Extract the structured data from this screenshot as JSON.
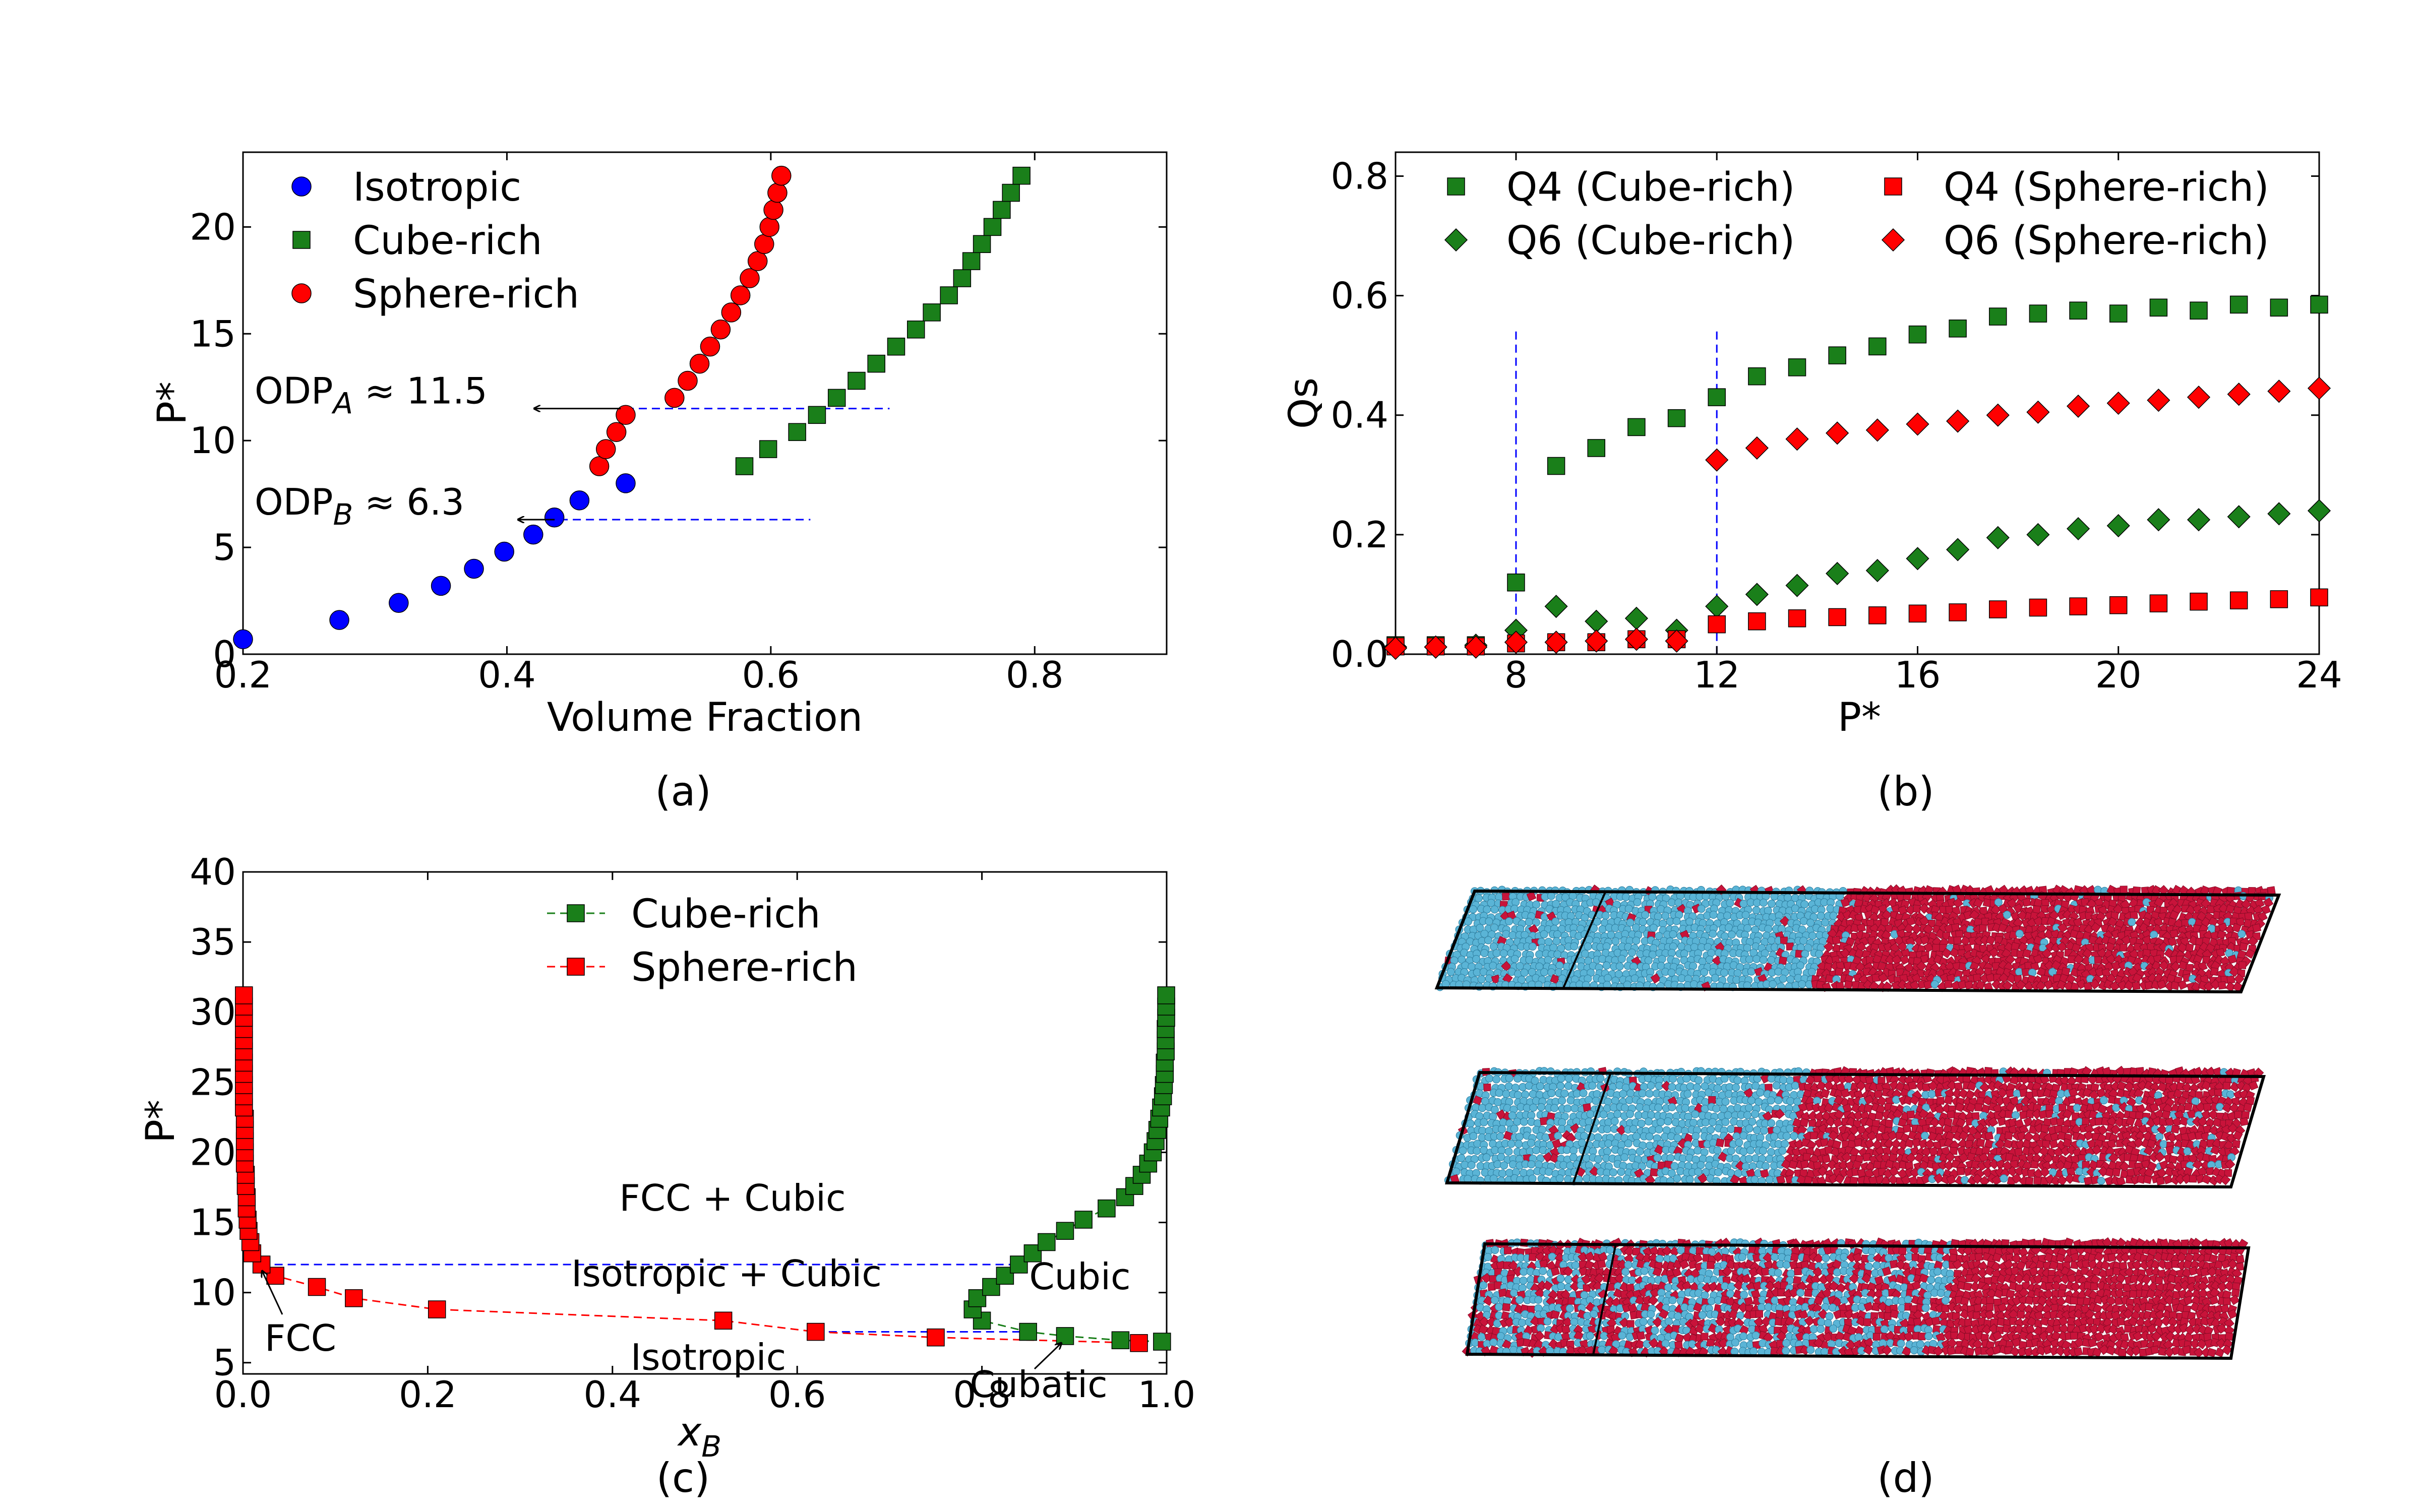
{
  "figure": {
    "captions": {
      "a": "(a)",
      "b": "(b)",
      "c": "(c)",
      "d": "(d)"
    }
  },
  "colors": {
    "isotropic": "#0000ff",
    "cube": "#1a7f1a",
    "sphere": "#ff0000",
    "guide": "#0000ff",
    "cube_render": "#c8133a",
    "sphere_render": "#5ab4d6"
  },
  "chart_data": [
    {
      "id": "a",
      "type": "scatter",
      "xlabel": "Volume Fraction",
      "ylabel": "P*",
      "xlim": [
        0.2,
        0.9
      ],
      "ylim": [
        0,
        23.5
      ],
      "xticks": [
        "0.2",
        "0.4",
        "0.6",
        "0.8"
      ],
      "yticks": [
        "0",
        "5",
        "10",
        "15",
        "20"
      ],
      "series": [
        {
          "name": "Isotropic",
          "marker": "circle",
          "color": "#0000ff",
          "points": [
            [
              0.2,
              0.7
            ],
            [
              0.273,
              1.6
            ],
            [
              0.318,
              2.4
            ],
            [
              0.35,
              3.2
            ],
            [
              0.375,
              4.0
            ],
            [
              0.398,
              4.8
            ],
            [
              0.42,
              5.6
            ],
            [
              0.436,
              6.4
            ],
            [
              0.455,
              7.2
            ],
            [
              0.49,
              8.0
            ]
          ]
        },
        {
          "name": "Cube-rich",
          "marker": "square",
          "color": "#1a7f1a",
          "points": [
            [
              0.58,
              8.8
            ],
            [
              0.598,
              9.6
            ],
            [
              0.62,
              10.4
            ],
            [
              0.635,
              11.2
            ],
            [
              0.65,
              12.0
            ],
            [
              0.665,
              12.8
            ],
            [
              0.68,
              13.6
            ],
            [
              0.695,
              14.4
            ],
            [
              0.71,
              15.2
            ],
            [
              0.722,
              16.0
            ],
            [
              0.735,
              16.8
            ],
            [
              0.745,
              17.6
            ],
            [
              0.752,
              18.4
            ],
            [
              0.76,
              19.2
            ],
            [
              0.768,
              20.0
            ],
            [
              0.775,
              20.8
            ],
            [
              0.782,
              21.6
            ],
            [
              0.79,
              22.4
            ]
          ]
        },
        {
          "name": "Sphere-rich",
          "marker": "circle",
          "color": "#ff0000",
          "points": [
            [
              0.47,
              8.8
            ],
            [
              0.475,
              9.6
            ],
            [
              0.483,
              10.4
            ],
            [
              0.49,
              11.2
            ],
            [
              0.527,
              12.0
            ],
            [
              0.537,
              12.8
            ],
            [
              0.546,
              13.6
            ],
            [
              0.554,
              14.4
            ],
            [
              0.562,
              15.2
            ],
            [
              0.57,
              16.0
            ],
            [
              0.577,
              16.8
            ],
            [
              0.584,
              17.6
            ],
            [
              0.59,
              18.4
            ],
            [
              0.595,
              19.2
            ],
            [
              0.599,
              20.0
            ],
            [
              0.602,
              20.8
            ],
            [
              0.605,
              21.6
            ],
            [
              0.608,
              22.4
            ]
          ]
        }
      ],
      "guides": [
        {
          "y": 11.5,
          "x_from": 0.49,
          "x_to": 0.69,
          "label": "ODP",
          "label_sub": "A",
          "label_rest": " ≈ 11.5"
        },
        {
          "y": 6.3,
          "x_from": 0.44,
          "x_to": 0.63,
          "label": "ODP",
          "label_sub": "B",
          "label_rest": " ≈  6.3"
        }
      ]
    },
    {
      "id": "b",
      "type": "scatter",
      "xlabel": "P*",
      "ylabel": "Qs",
      "xlim": [
        5.6,
        24
      ],
      "ylim": [
        0,
        0.84
      ],
      "xticks": [
        "8",
        "12",
        "16",
        "20",
        "24"
      ],
      "yticks": [
        "0.0",
        "0.2",
        "0.4",
        "0.6",
        "0.8"
      ],
      "vlines": [
        8,
        12
      ],
      "series": [
        {
          "name": "Q4 (Cube-rich)",
          "marker": "square",
          "color": "#1a7f1a",
          "points": [
            [
              5.6,
              0.015
            ],
            [
              6.4,
              0.015
            ],
            [
              7.2,
              0.015
            ],
            [
              8.0,
              0.12
            ],
            [
              8.8,
              0.315
            ],
            [
              9.6,
              0.345
            ],
            [
              10.4,
              0.38
            ],
            [
              11.2,
              0.395
            ],
            [
              12.0,
              0.43
            ],
            [
              12.8,
              0.465
            ],
            [
              13.6,
              0.48
            ],
            [
              14.4,
              0.5
            ],
            [
              15.2,
              0.515
            ],
            [
              16.0,
              0.535
            ],
            [
              16.8,
              0.545
            ],
            [
              17.6,
              0.565
            ],
            [
              18.4,
              0.57
            ],
            [
              19.2,
              0.575
            ],
            [
              20.0,
              0.57
            ],
            [
              20.8,
              0.58
            ],
            [
              21.6,
              0.575
            ],
            [
              22.4,
              0.585
            ],
            [
              23.2,
              0.58
            ],
            [
              24.0,
              0.585
            ]
          ]
        },
        {
          "name": "Q6 (Cube-rich)",
          "marker": "diamond",
          "color": "#1a7f1a",
          "points": [
            [
              5.6,
              0.012
            ],
            [
              6.4,
              0.012
            ],
            [
              7.2,
              0.015
            ],
            [
              8.0,
              0.04
            ],
            [
              8.8,
              0.08
            ],
            [
              9.6,
              0.055
            ],
            [
              10.4,
              0.06
            ],
            [
              11.2,
              0.04
            ],
            [
              12.0,
              0.08
            ],
            [
              12.8,
              0.1
            ],
            [
              13.6,
              0.115
            ],
            [
              14.4,
              0.135
            ],
            [
              15.2,
              0.14
            ],
            [
              16.0,
              0.16
            ],
            [
              16.8,
              0.175
            ],
            [
              17.6,
              0.195
            ],
            [
              18.4,
              0.2
            ],
            [
              19.2,
              0.21
            ],
            [
              20.0,
              0.215
            ],
            [
              20.8,
              0.225
            ],
            [
              21.6,
              0.225
            ],
            [
              22.4,
              0.23
            ],
            [
              23.2,
              0.235
            ],
            [
              24.0,
              0.24
            ]
          ]
        },
        {
          "name": "Q4 (Sphere-rich)",
          "marker": "square",
          "color": "#ff0000",
          "points": [
            [
              5.6,
              0.013
            ],
            [
              6.4,
              0.013
            ],
            [
              7.2,
              0.013
            ],
            [
              8.0,
              0.018
            ],
            [
              8.8,
              0.02
            ],
            [
              9.6,
              0.02
            ],
            [
              10.4,
              0.025
            ],
            [
              11.2,
              0.025
            ],
            [
              12.0,
              0.05
            ],
            [
              12.8,
              0.055
            ],
            [
              13.6,
              0.06
            ],
            [
              14.4,
              0.062
            ],
            [
              15.2,
              0.065
            ],
            [
              16.0,
              0.068
            ],
            [
              16.8,
              0.07
            ],
            [
              17.6,
              0.075
            ],
            [
              18.4,
              0.078
            ],
            [
              19.2,
              0.08
            ],
            [
              20.0,
              0.082
            ],
            [
              20.8,
              0.085
            ],
            [
              21.6,
              0.088
            ],
            [
              22.4,
              0.09
            ],
            [
              23.2,
              0.092
            ],
            [
              24.0,
              0.095
            ]
          ]
        },
        {
          "name": "Q6 (Sphere-rich)",
          "marker": "diamond",
          "color": "#ff0000",
          "points": [
            [
              5.6,
              0.01
            ],
            [
              6.4,
              0.012
            ],
            [
              7.2,
              0.012
            ],
            [
              8.0,
              0.02
            ],
            [
              8.8,
              0.02
            ],
            [
              9.6,
              0.022
            ],
            [
              10.4,
              0.025
            ],
            [
              11.2,
              0.022
            ],
            [
              12.0,
              0.325
            ],
            [
              12.8,
              0.345
            ],
            [
              13.6,
              0.36
            ],
            [
              14.4,
              0.37
            ],
            [
              15.2,
              0.375
            ],
            [
              16.0,
              0.385
            ],
            [
              16.8,
              0.39
            ],
            [
              17.6,
              0.4
            ],
            [
              18.4,
              0.405
            ],
            [
              19.2,
              0.415
            ],
            [
              20.0,
              0.42
            ],
            [
              20.8,
              0.425
            ],
            [
              21.6,
              0.43
            ],
            [
              22.4,
              0.435
            ],
            [
              23.2,
              0.44
            ],
            [
              24.0,
              0.445
            ]
          ]
        }
      ]
    },
    {
      "id": "c",
      "type": "line",
      "xlabel": "x",
      "xlabel_sub": "B",
      "ylabel": "P*",
      "xlim": [
        0,
        1
      ],
      "ylim": [
        4,
        40
      ],
      "xticks": [
        "0.0",
        "0.2",
        "0.4",
        "0.6",
        "0.8",
        "1.0"
      ],
      "yticks": [
        "5",
        "10",
        "15",
        "20",
        "25",
        "30",
        "35",
        "40"
      ],
      "series": [
        {
          "name": "Cube-rich",
          "marker": "square",
          "color": "#1a7f1a",
          "points": [
            [
              0.995,
              6.5
            ],
            [
              0.95,
              6.6
            ],
            [
              0.89,
              6.9
            ],
            [
              0.85,
              7.2
            ],
            [
              0.8,
              8.0
            ],
            [
              0.79,
              8.8
            ],
            [
              0.795,
              9.6
            ],
            [
              0.81,
              10.4
            ],
            [
              0.825,
              11.2
            ],
            [
              0.84,
              12.0
            ],
            [
              0.855,
              12.8
            ],
            [
              0.87,
              13.6
            ],
            [
              0.89,
              14.4
            ],
            [
              0.91,
              15.2
            ],
            [
              0.935,
              16.0
            ],
            [
              0.955,
              16.8
            ],
            [
              0.965,
              17.6
            ],
            [
              0.973,
              18.4
            ],
            [
              0.98,
              19.2
            ],
            [
              0.985,
              20.0
            ],
            [
              0.988,
              20.8
            ],
            [
              0.99,
              21.6
            ],
            [
              0.992,
              22.4
            ],
            [
              0.994,
              23.2
            ],
            [
              0.996,
              24.0
            ],
            [
              0.997,
              24.8
            ],
            [
              0.998,
              25.6
            ],
            [
              0.998,
              26.4
            ],
            [
              0.999,
              27.2
            ],
            [
              0.999,
              28.0
            ],
            [
              0.999,
              28.8
            ],
            [
              0.9995,
              29.6
            ],
            [
              0.9995,
              30.4
            ],
            [
              0.9995,
              31.2
            ]
          ]
        },
        {
          "name": "Sphere-rich",
          "marker": "square",
          "color": "#ff0000",
          "points": [
            [
              0.97,
              6.4
            ],
            [
              0.75,
              6.8
            ],
            [
              0.62,
              7.2
            ],
            [
              0.52,
              8.0
            ],
            [
              0.21,
              8.8
            ],
            [
              0.12,
              9.6
            ],
            [
              0.08,
              10.4
            ],
            [
              0.035,
              11.2
            ],
            [
              0.02,
              12.0
            ],
            [
              0.01,
              12.8
            ],
            [
              0.008,
              13.6
            ],
            [
              0.006,
              14.4
            ],
            [
              0.005,
              15.2
            ],
            [
              0.004,
              16.0
            ],
            [
              0.004,
              16.8
            ],
            [
              0.003,
              17.6
            ],
            [
              0.003,
              18.4
            ],
            [
              0.002,
              19.2
            ],
            [
              0.002,
              20.0
            ],
            [
              0.002,
              20.8
            ],
            [
              0.002,
              21.6
            ],
            [
              0.002,
              22.4
            ],
            [
              0.001,
              23.2
            ],
            [
              0.001,
              24.0
            ],
            [
              0.001,
              24.8
            ],
            [
              0.001,
              25.6
            ],
            [
              0.001,
              26.4
            ],
            [
              0.001,
              27.2
            ],
            [
              0.001,
              28.0
            ],
            [
              0.001,
              28.8
            ],
            [
              0.001,
              29.6
            ],
            [
              0.001,
              30.4
            ],
            [
              0.001,
              31.2
            ]
          ]
        }
      ],
      "hlines": [
        {
          "y": 12.0,
          "x_from": 0.02,
          "x_to": 0.84
        },
        {
          "y": 7.2,
          "x_from": 0.62,
          "x_to": 0.85
        }
      ],
      "region_labels": [
        "FCC + Cubic",
        "Isotropic + Cubic",
        "Isotropic",
        "Cubic"
      ],
      "arrow_labels": [
        "FCC",
        "Cubatic"
      ]
    }
  ]
}
